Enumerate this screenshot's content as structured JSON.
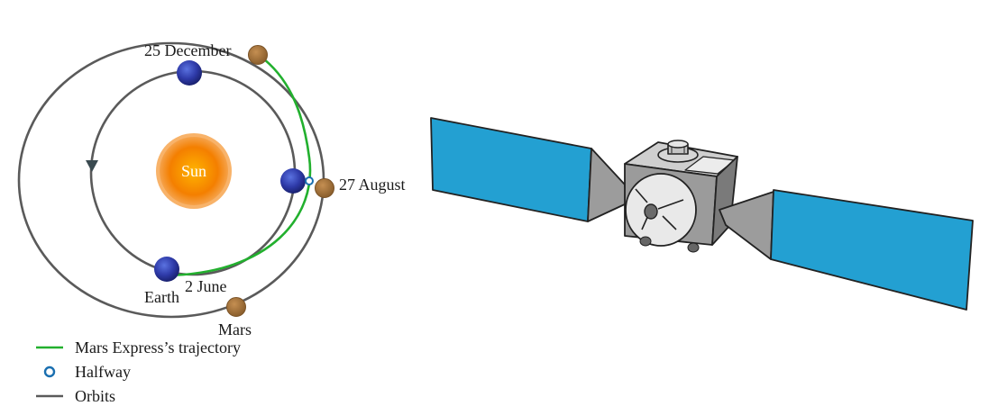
{
  "diagram": {
    "sun_label": "Sun",
    "dates": {
      "december": "25 December",
      "august": "27 August",
      "june": "2 June"
    },
    "planets": {
      "earth": "Earth",
      "mars": "Mars"
    },
    "legend": {
      "trajectory": "Mars Express’s trajectory",
      "halfway": "Halfway",
      "orbits": "Orbits"
    },
    "colors": {
      "trajectory": "#22b02e",
      "orbits": "#5a5a5a",
      "halfway": "#1a6fb0",
      "earth": "#2e3aa8",
      "mars": "#a0703a",
      "sun": "#f28c00",
      "solar_panel": "#23a0d2"
    }
  }
}
